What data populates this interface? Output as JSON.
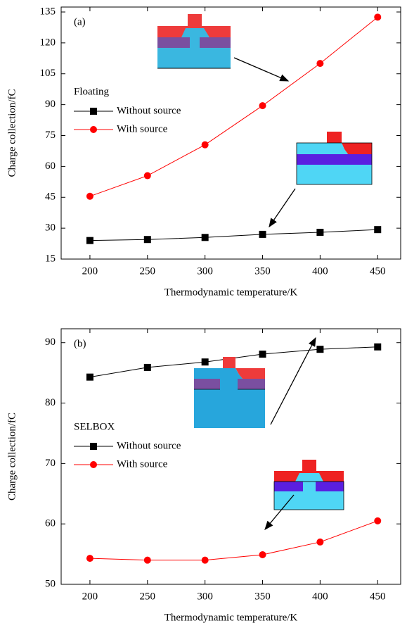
{
  "chart_data": [
    {
      "type": "line",
      "panel_label": "(a)",
      "legend_title": "Floating",
      "x_label": "Thermodynamic temperature/K",
      "y_label": "Charge collection/fC",
      "x": [
        200,
        250,
        300,
        350,
        400,
        450
      ],
      "series": [
        {
          "name": "Without source",
          "color": "#000000",
          "marker": "square",
          "values": [
            24,
            24.5,
            25.5,
            27,
            28,
            29.3
          ]
        },
        {
          "name": "With source",
          "color": "#ff0000",
          "marker": "circle",
          "values": [
            45.5,
            55.5,
            70.5,
            89.5,
            110,
            132.5
          ]
        }
      ],
      "xlim": [
        175,
        470
      ],
      "xticks": [
        200,
        250,
        300,
        350,
        400,
        450
      ],
      "ylim": [
        15,
        137.4
      ],
      "yticks": [
        15,
        30,
        45,
        60,
        75,
        90,
        105,
        120,
        135
      ]
    },
    {
      "type": "line",
      "panel_label": "(b)",
      "legend_title": "SELBOX",
      "x_label": "Thermodynamic temperature/K",
      "y_label": "Charge collection/fC",
      "x": [
        200,
        250,
        300,
        350,
        400,
        450
      ],
      "series": [
        {
          "name": "Without source",
          "color": "#000000",
          "marker": "square",
          "values": [
            84.3,
            85.9,
            86.8,
            88.1,
            88.9,
            89.3
          ]
        },
        {
          "name": "With source",
          "color": "#ff0000",
          "marker": "circle",
          "values": [
            54.3,
            54,
            54,
            54.9,
            57,
            60.5
          ]
        }
      ],
      "xlim": [
        175,
        470
      ],
      "xticks": [
        200,
        250,
        300,
        350,
        400,
        450
      ],
      "ylim": [
        50,
        92.3
      ],
      "yticks": [
        50,
        60,
        70,
        80,
        90
      ]
    }
  ]
}
